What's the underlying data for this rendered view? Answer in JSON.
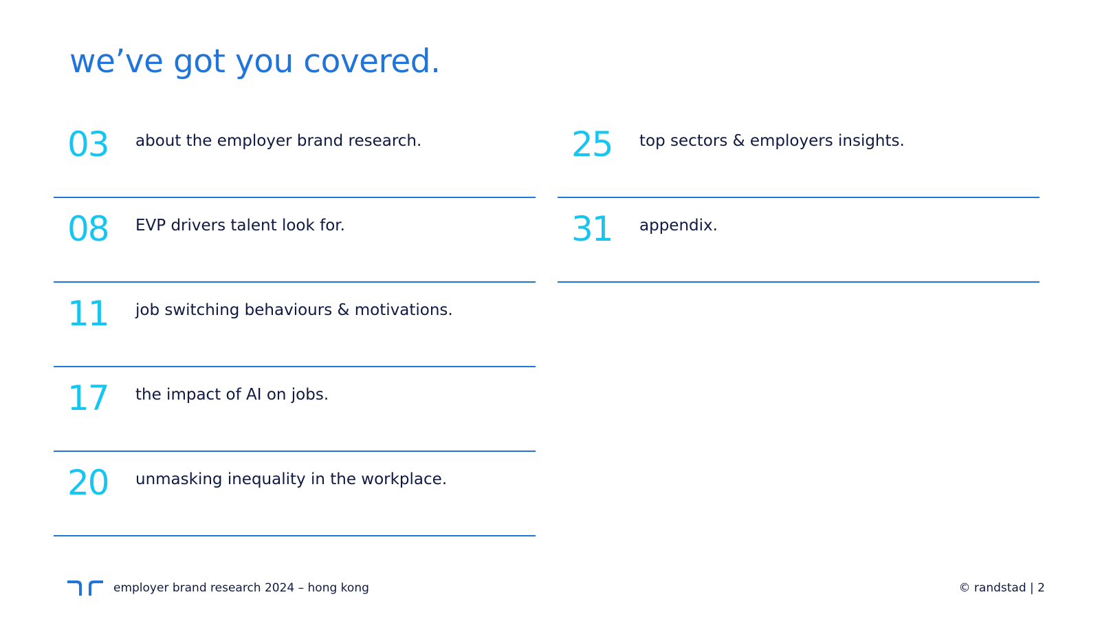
{
  "title": "we’ve got you covered.",
  "toc": {
    "left": [
      {
        "number": "03",
        "label": "about the employer brand research."
      },
      {
        "number": "08",
        "label": "EVP drivers talent look for."
      },
      {
        "number": "11",
        "label": "job switching behaviours & motivations."
      },
      {
        "number": "17",
        "label": "the impact of AI on jobs."
      },
      {
        "number": "20",
        "label": "unmasking inequality in the workplace."
      }
    ],
    "right": [
      {
        "number": "25",
        "label": "top sectors & employers insights."
      },
      {
        "number": "31",
        "label": "appendix."
      }
    ]
  },
  "footer": {
    "logo_icon": "randstad-logo-icon",
    "text": "employer brand research 2024 – hong kong",
    "copyright": "© randstad | 2"
  },
  "colors": {
    "title": "#2175d9",
    "number": "#17c6f0",
    "divider": "#2175d9",
    "text": "#0f1941"
  }
}
